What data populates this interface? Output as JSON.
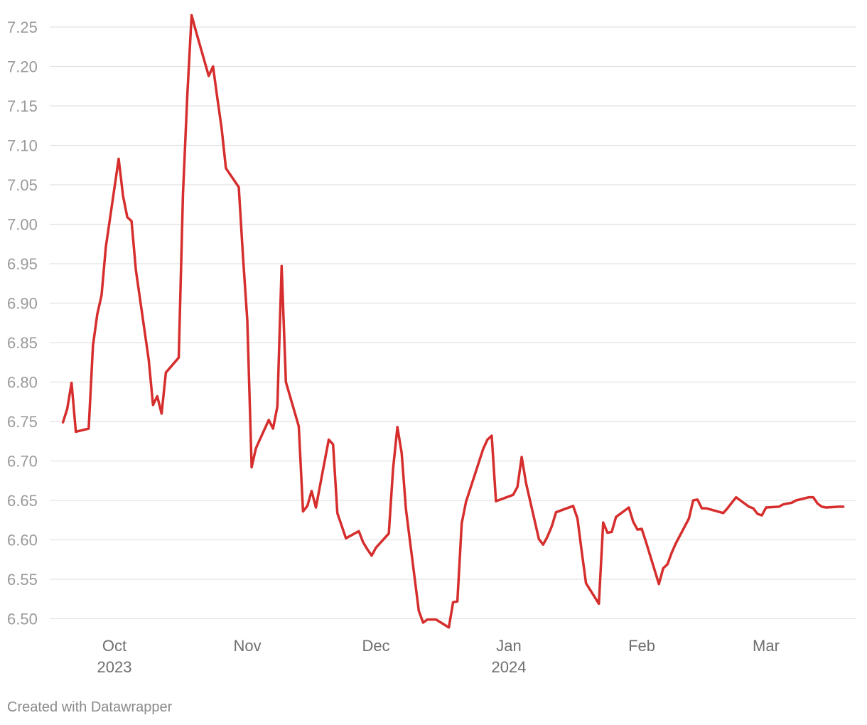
{
  "credit": "Created with Datawrapper",
  "chart_data": {
    "type": "line",
    "title": "",
    "xlabel": "",
    "ylabel": "",
    "ylim": [
      6.49,
      7.27
    ],
    "grid": true,
    "line_color": "#d62d2d",
    "y_ticks": [
      "6.50",
      "6.55",
      "6.60",
      "6.65",
      "6.70",
      "6.75",
      "6.80",
      "6.85",
      "6.90",
      "6.95",
      "7.00",
      "7.05",
      "7.10",
      "7.15",
      "7.20",
      "7.25"
    ],
    "x_ticks": [
      {
        "date": "2023-10-01",
        "label": "Oct",
        "sublabel": "2023"
      },
      {
        "date": "2023-11-01",
        "label": "Nov",
        "sublabel": ""
      },
      {
        "date": "2023-12-01",
        "label": "Dec",
        "sublabel": ""
      },
      {
        "date": "2024-01-01",
        "label": "Jan",
        "sublabel": "2024"
      },
      {
        "date": "2024-02-01",
        "label": "Feb",
        "sublabel": ""
      },
      {
        "date": "2024-03-01",
        "label": "Mar",
        "sublabel": ""
      }
    ],
    "series": [
      {
        "x": [
          "2023-09-19",
          "2023-09-20",
          "2023-09-21",
          "2023-09-22",
          "2023-09-25",
          "2023-09-26",
          "2023-09-27",
          "2023-09-28",
          "2023-09-29",
          "2023-10-02",
          "2023-10-03",
          "2023-10-04",
          "2023-10-05",
          "2023-10-06",
          "2023-10-09",
          "2023-10-10",
          "2023-10-11",
          "2023-10-12",
          "2023-10-13",
          "2023-10-16",
          "2023-10-17",
          "2023-10-18",
          "2023-10-19",
          "2023-10-20",
          "2023-10-23",
          "2023-10-24",
          "2023-10-25",
          "2023-10-26",
          "2023-10-27",
          "2023-10-30",
          "2023-10-31",
          "2023-11-01",
          "2023-11-02",
          "2023-11-03",
          "2023-11-06",
          "2023-11-07",
          "2023-11-08",
          "2023-11-09",
          "2023-11-10",
          "2023-11-13",
          "2023-11-14",
          "2023-11-15",
          "2023-11-16",
          "2023-11-17",
          "2023-11-20",
          "2023-11-21",
          "2023-11-22",
          "2023-11-24",
          "2023-11-27",
          "2023-11-28",
          "2023-11-29",
          "2023-11-30",
          "2023-12-01",
          "2023-12-04",
          "2023-12-05",
          "2023-12-06",
          "2023-12-07",
          "2023-12-08",
          "2023-12-11",
          "2023-12-12",
          "2023-12-13",
          "2023-12-14",
          "2023-12-15",
          "2023-12-18",
          "2023-12-19",
          "2023-12-20",
          "2023-12-21",
          "2023-12-22",
          "2023-12-26",
          "2023-12-27",
          "2023-12-28",
          "2023-12-29",
          "2024-01-02",
          "2024-01-03",
          "2024-01-04",
          "2024-01-05",
          "2024-01-08",
          "2024-01-09",
          "2024-01-10",
          "2024-01-11",
          "2024-01-12",
          "2024-01-16",
          "2024-01-17",
          "2024-01-18",
          "2024-01-19",
          "2024-01-22",
          "2024-01-23",
          "2024-01-24",
          "2024-01-25",
          "2024-01-26",
          "2024-01-29",
          "2024-01-30",
          "2024-01-31",
          "2024-02-01",
          "2024-02-02",
          "2024-02-05",
          "2024-02-06",
          "2024-02-07",
          "2024-02-08",
          "2024-02-09",
          "2024-02-12",
          "2024-02-13",
          "2024-02-14",
          "2024-02-15",
          "2024-02-16",
          "2024-02-20",
          "2024-02-21",
          "2024-02-22",
          "2024-02-23",
          "2024-02-26",
          "2024-02-27",
          "2024-02-28",
          "2024-02-29",
          "2024-03-01",
          "2024-03-04",
          "2024-03-05",
          "2024-03-06",
          "2024-03-07",
          "2024-03-08",
          "2024-03-11",
          "2024-03-12",
          "2024-03-13",
          "2024-03-14",
          "2024-03-15",
          "2024-03-18",
          "2024-03-19"
        ],
        "y": [
          6.749,
          6.766,
          6.799,
          6.737,
          6.741,
          6.846,
          6.886,
          6.91,
          6.971,
          7.083,
          7.036,
          7.009,
          7.004,
          6.942,
          6.828,
          6.771,
          6.782,
          6.76,
          6.812,
          6.831,
          7.039,
          7.164,
          7.265,
          7.245,
          7.188,
          7.2,
          7.16,
          7.122,
          7.071,
          7.047,
          6.958,
          6.878,
          6.692,
          6.716,
          6.752,
          6.741,
          6.769,
          6.947,
          6.8,
          6.744,
          6.636,
          6.643,
          6.662,
          6.641,
          6.727,
          6.721,
          6.634,
          6.602,
          6.611,
          6.597,
          6.588,
          6.58,
          6.59,
          6.608,
          6.69,
          6.743,
          6.71,
          6.639,
          6.51,
          6.495,
          6.499,
          6.499,
          6.499,
          6.489,
          6.521,
          6.522,
          6.621,
          6.648,
          6.715,
          6.727,
          6.732,
          6.649,
          6.657,
          6.667,
          6.705,
          6.672,
          6.601,
          6.594,
          6.604,
          6.617,
          6.635,
          6.643,
          6.627,
          6.585,
          6.545,
          6.519,
          6.622,
          6.609,
          6.61,
          6.629,
          6.641,
          6.623,
          6.613,
          6.614,
          6.597,
          6.544,
          6.564,
          6.569,
          6.584,
          6.596,
          6.627,
          6.65,
          6.651,
          6.64,
          6.64,
          6.634,
          6.64,
          6.647,
          6.654,
          6.642,
          6.64,
          6.633,
          6.631,
          6.641,
          6.642,
          6.645,
          6.646,
          6.647,
          6.65,
          6.654,
          6.654,
          6.646,
          6.642,
          6.641,
          6.642,
          6.642
        ]
      }
    ]
  }
}
